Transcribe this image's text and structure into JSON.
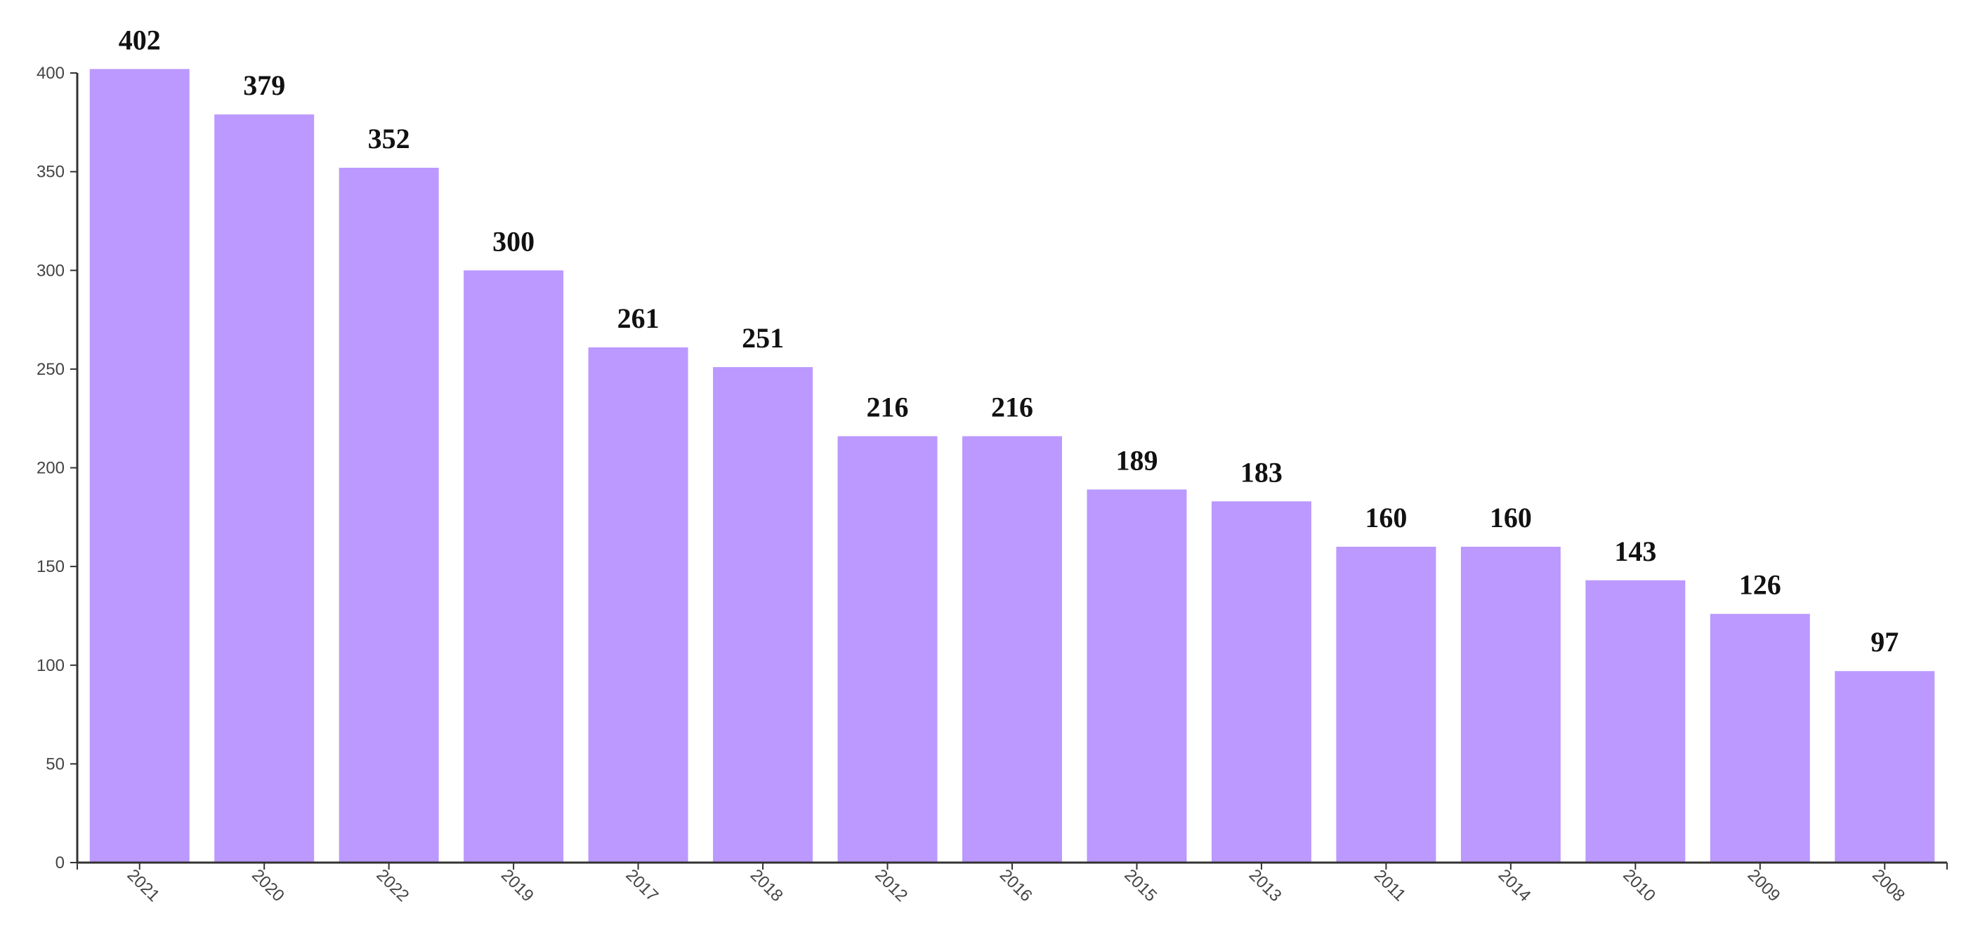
{
  "chart_data": {
    "type": "bar",
    "title": "",
    "xlabel": "",
    "ylabel": "",
    "categories": [
      "2021",
      "2020",
      "2022",
      "2019",
      "2017",
      "2018",
      "2012",
      "2016",
      "2015",
      "2013",
      "2011",
      "2014",
      "2010",
      "2009",
      "2008"
    ],
    "values": [
      402,
      379,
      352,
      300,
      261,
      251,
      216,
      216,
      189,
      183,
      160,
      160,
      143,
      126,
      97
    ],
    "ylim": [
      0,
      400
    ],
    "yticks": [
      "0",
      "50",
      "100",
      "150",
      "200",
      "250",
      "300",
      "350",
      "400"
    ],
    "grid": false,
    "legend": "none",
    "bar_color": "#BB99FF",
    "axis_color": "#333333"
  }
}
